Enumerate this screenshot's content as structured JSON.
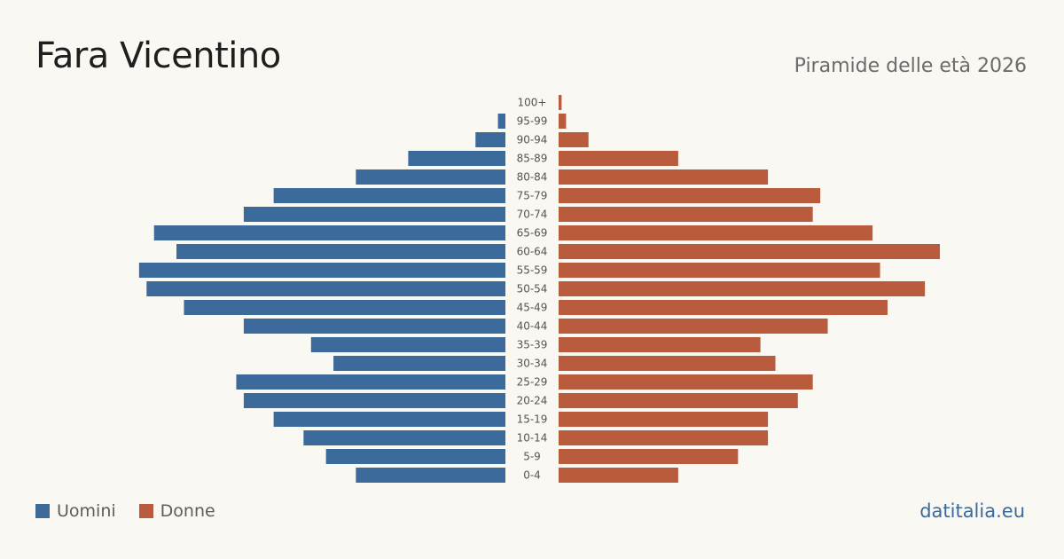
{
  "header": {
    "title": "Fara Vicentino",
    "subtitle": "Piramide delle età 2026"
  },
  "legend": {
    "men_label": "Uomini",
    "women_label": "Donne"
  },
  "brand": "datitalia.eu",
  "colors": {
    "men": "#3c6a9b",
    "women": "#b95c3e",
    "background": "#faf8f3",
    "tick_text": "#555555"
  },
  "chart_data": {
    "type": "bar",
    "orientation": "horizontal-pyramid",
    "categories": [
      "100+",
      "95-99",
      "90-94",
      "85-89",
      "80-84",
      "75-79",
      "70-74",
      "65-69",
      "60-64",
      "55-59",
      "50-54",
      "45-49",
      "40-44",
      "35-39",
      "30-34",
      "25-29",
      "20-24",
      "15-19",
      "10-14",
      "5-9",
      "0-4"
    ],
    "series": [
      {
        "name": "Uomini",
        "side": "left",
        "values": [
          0,
          1,
          4,
          13,
          20,
          31,
          35,
          47,
          44,
          49,
          48,
          43,
          35,
          26,
          23,
          36,
          35,
          31,
          27,
          24,
          20
        ]
      },
      {
        "name": "Donne",
        "side": "right",
        "values": [
          0.4,
          1,
          4,
          16,
          28,
          35,
          34,
          42,
          51,
          43,
          49,
          44,
          36,
          27,
          29,
          34,
          32,
          28,
          28,
          24,
          16
        ]
      }
    ],
    "max_value": 51,
    "grid": false,
    "legend_position": "bottom-left"
  }
}
